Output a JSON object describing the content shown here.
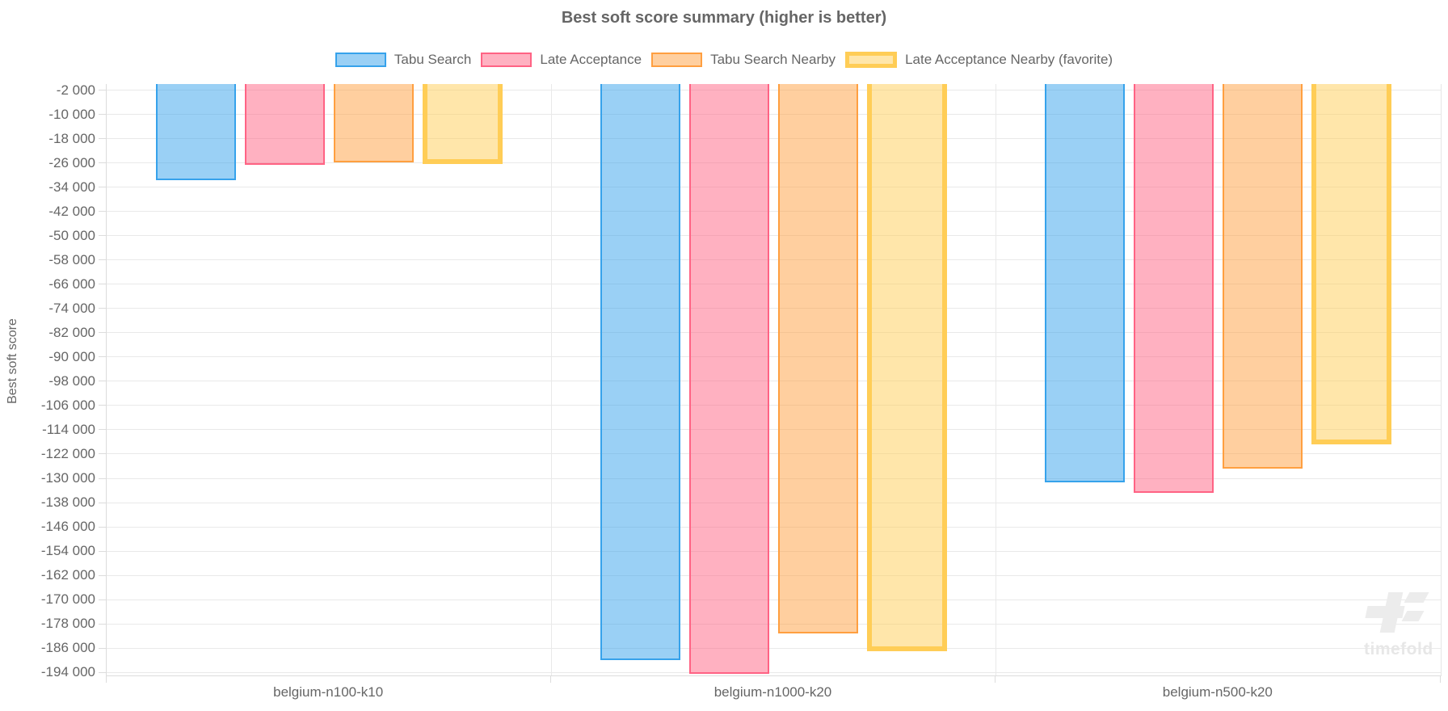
{
  "watermark": {
    "text": "timefold"
  },
  "palette": {
    "background": "#ffffff",
    "text": "#666666",
    "grid": "#e9e9e9",
    "axis_border": "#dcdcdc"
  },
  "chart_data": {
    "type": "bar",
    "title": "Best soft score summary (higher is better)",
    "xlabel": "",
    "ylabel": "Best soft score",
    "grid": true,
    "legend_position": "top",
    "categories": [
      "belgium-n100-k10",
      "belgium-n1000-k20",
      "belgium-n500-k20"
    ],
    "series": [
      {
        "name": "Tabu Search",
        "border_color": "#36A2EB",
        "fill_color": "rgba(54,162,235,0.5)",
        "favorite": false,
        "values": [
          -31700,
          -190000,
          -131400
        ]
      },
      {
        "name": "Late Acceptance",
        "border_color": "#FF6384",
        "fill_color": "rgba(255,99,132,0.5)",
        "favorite": false,
        "values": [
          -26700,
          -194400,
          -134900
        ]
      },
      {
        "name": "Tabu Search Nearby",
        "border_color": "#FF9F40",
        "fill_color": "rgba(255,159,64,0.5)",
        "favorite": false,
        "values": [
          -25900,
          -181100,
          -126900
        ]
      },
      {
        "name": "Late Acceptance Nearby (favorite)",
        "border_color": "#FFCD56",
        "fill_color": "rgba(255,205,86,0.5)",
        "favorite": true,
        "values": [
          -26300,
          -187000,
          -118700
        ]
      }
    ],
    "ylim": [
      -195000,
      0
    ],
    "yticks": {
      "start": -2000,
      "step": -8000,
      "count": 25
    }
  }
}
